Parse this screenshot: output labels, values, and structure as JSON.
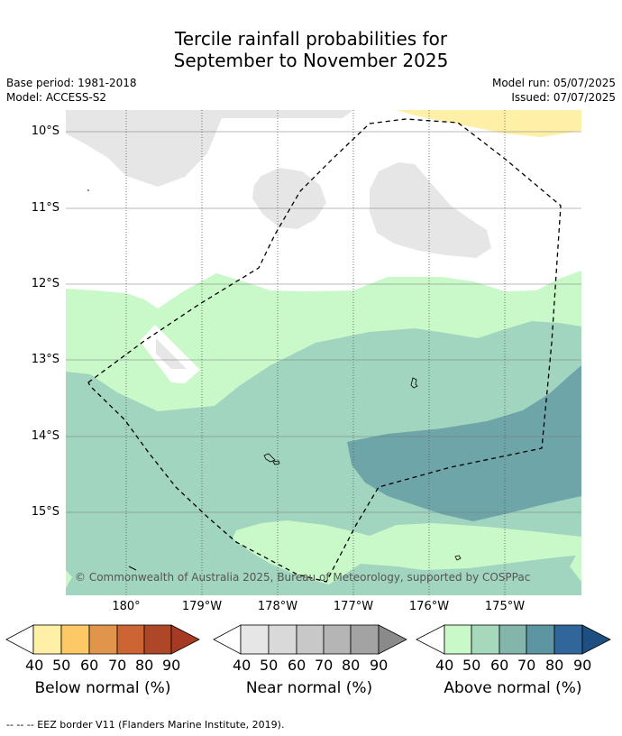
{
  "title_line1": "Tercile rainfall probabilities for",
  "title_line2": "September to November 2025",
  "base_period": "Base period: 1981-2018",
  "model": "Model: ACCESS-S2",
  "model_run": "Model run: 05/07/2025",
  "issued": "Issued: 07/07/2025",
  "lat_labels": [
    "10°S",
    "11°S",
    "12°S",
    "13°S",
    "14°S",
    "15°S"
  ],
  "lon_labels": [
    "180°",
    "179°W",
    "178°W",
    "177°W",
    "176°W",
    "175°W"
  ],
  "copyright": "© Commonwealth of Australia 2025, Bureau of Meteorology, supported by COSPPac",
  "colorbars": [
    {
      "title": "Below normal (%)",
      "ticks": [
        "40",
        "50",
        "60",
        "70",
        "80",
        "90"
      ],
      "colors": [
        "#fff0a8",
        "#fdc866",
        "#e0954a",
        "#cc6434",
        "#ad4727",
        "#a63a22"
      ]
    },
    {
      "title": "Near normal (%)",
      "ticks": [
        "40",
        "50",
        "60",
        "70",
        "80",
        "90"
      ],
      "colors": [
        "#e6e6e6",
        "#d9d9d9",
        "#c8c8c8",
        "#b5b5b5",
        "#a3a3a3",
        "#8a8a8a"
      ]
    },
    {
      "title": "Above normal (%)",
      "ticks": [
        "40",
        "50",
        "60",
        "70",
        "80",
        "90"
      ],
      "colors": [
        "#caf9c9",
        "#a6d9bb",
        "#83b5aa",
        "#5e95a3",
        "#306699",
        "#1d4f80"
      ]
    }
  ],
  "footnote": "--  --  -- EEZ border V11 (Flanders Marine Institute, 2019)."
}
